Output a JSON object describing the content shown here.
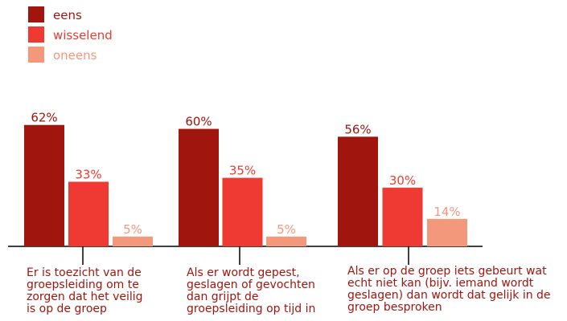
{
  "chart_data": {
    "type": "bar",
    "categories": [
      "Er is toezicht van de groepsleiding om te zorgen dat het veilig is op de groep",
      "Als er wordt gepest, geslagen of gevochten dan grijpt de groepsleiding op tijd in",
      "Als er op de groep iets gebeurt wat echt niet kan (bijv. iemand wordt geslagen) dan wordt dat gelijk in de groep besproken"
    ],
    "series": [
      {
        "name": "eens",
        "color": "#a0160f",
        "values": [
          62,
          60,
          56
        ],
        "value_labels": [
          "62%",
          "60%",
          "56%"
        ]
      },
      {
        "name": "wisselend",
        "color": "#ee3a32",
        "values": [
          33,
          35,
          30
        ],
        "value_labels": [
          "33%",
          "35%",
          "30%"
        ]
      },
      {
        "name": "oneens",
        "color": "#f4987c",
        "values": [
          5,
          5,
          14
        ],
        "value_labels": [
          "5%",
          "5%",
          "14%"
        ]
      }
    ]
  }
}
